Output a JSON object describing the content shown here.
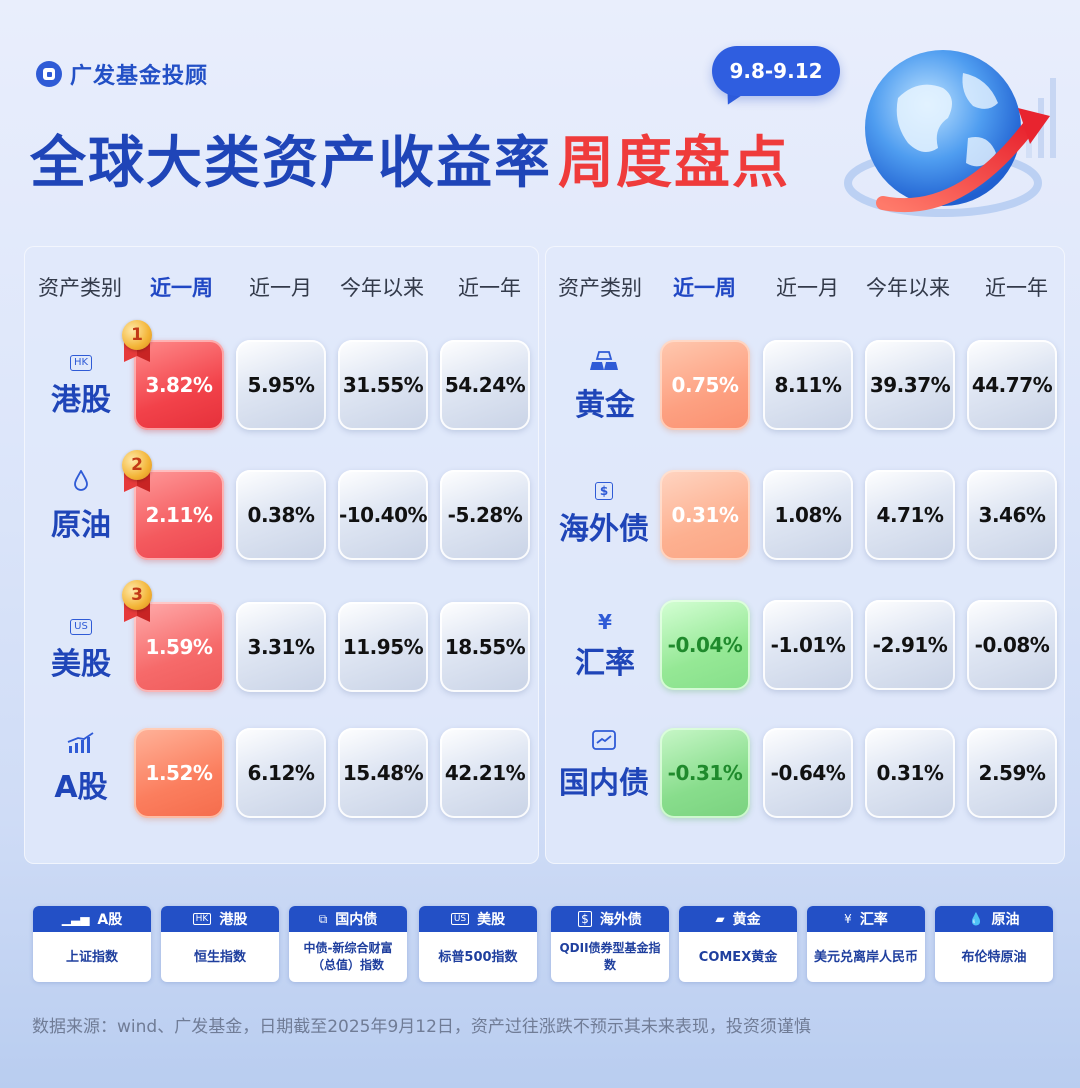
{
  "brand": {
    "name": "广发基金投顾"
  },
  "header": {
    "date_range": "9.8-9.12",
    "title_part1": "全球大类资产收益率",
    "title_part2": "周度盘点"
  },
  "columns": [
    "资产类别",
    "近一周",
    "近一月",
    "今年以来",
    "近一年"
  ],
  "left_rows": [
    {
      "icon": "hk-badge-icon",
      "icon_text": "HK",
      "name": "港股",
      "values": [
        "3.82%",
        "5.95%",
        "31.55%",
        "54.24%"
      ],
      "rank": "1"
    },
    {
      "icon": "oil-drop-icon",
      "icon_text": "",
      "name": "原油",
      "values": [
        "2.11%",
        "0.38%",
        "-10.40%",
        "-5.28%"
      ],
      "rank": "2"
    },
    {
      "icon": "us-badge-icon",
      "icon_text": "US",
      "name": "美股",
      "values": [
        "1.59%",
        "3.31%",
        "11.95%",
        "18.55%"
      ],
      "rank": "3"
    },
    {
      "icon": "chart-growth-icon",
      "icon_text": "",
      "name": "A股",
      "values": [
        "1.52%",
        "6.12%",
        "15.48%",
        "42.21%"
      ],
      "rank": ""
    }
  ],
  "right_rows": [
    {
      "icon": "gold-bar-icon",
      "icon_text": "",
      "name": "黄金",
      "values": [
        "0.75%",
        "8.11%",
        "39.37%",
        "44.77%"
      ]
    },
    {
      "icon": "bond-dollar-icon",
      "icon_text": "$",
      "name": "海外债",
      "values": [
        "0.31%",
        "1.08%",
        "4.71%",
        "3.46%"
      ]
    },
    {
      "icon": "yen-icon",
      "icon_text": "¥",
      "name": "汇率",
      "values": [
        "-0.04%",
        "-1.01%",
        "-2.91%",
        "-0.08%"
      ]
    },
    {
      "icon": "domestic-bond-icon",
      "icon_text": "",
      "name": "国内债",
      "values": [
        "-0.31%",
        "-0.64%",
        "0.31%",
        "2.59%"
      ]
    }
  ],
  "legend": [
    {
      "icon_text": "",
      "title": "A股",
      "desc": "上证指数"
    },
    {
      "icon_text": "HK",
      "title": "港股",
      "desc": "恒生指数"
    },
    {
      "icon_text": "",
      "title": "国内债",
      "desc": "中债-新综合财富（总值）指数"
    },
    {
      "icon_text": "US",
      "title": "美股",
      "desc": "标普500指数"
    },
    {
      "icon_text": "$",
      "title": "海外债",
      "desc": "QDII债券型基金指数"
    },
    {
      "icon_text": "",
      "title": "黄金",
      "desc": "COMEX黄金"
    },
    {
      "icon_text": "¥",
      "title": "汇率",
      "desc": "美元兑离岸人民币"
    },
    {
      "icon_text": "",
      "title": "原油",
      "desc": "布伦特原油"
    }
  ],
  "footer": "数据来源：wind、广发基金，日期截至2025年9月12日，资产过往涨跌不预示其未来表现，投资须谨慎",
  "colors": {
    "brand_blue": "#2350c6",
    "title_red": "#ef3b3b",
    "up_red": "#f2424a",
    "down_green": "#86df8a"
  }
}
